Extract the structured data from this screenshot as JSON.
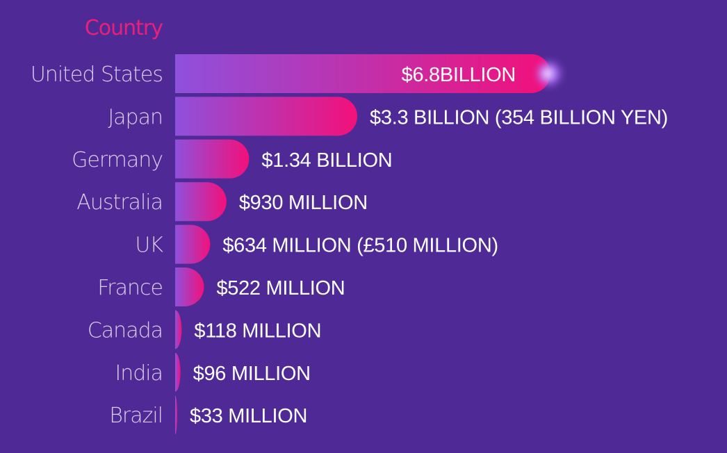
{
  "chart_data": {
    "type": "bar",
    "orientation": "horizontal",
    "category_header": "Country",
    "categories": [
      "United States",
      "Japan",
      "Germany",
      "Australia",
      "UK",
      "France",
      "Canada",
      "India",
      "Brazil"
    ],
    "values": [
      6.8,
      3.3,
      1.34,
      0.93,
      0.634,
      0.522,
      0.118,
      0.096,
      0.033
    ],
    "value_unit": "USD billion",
    "data_labels": [
      "$6.8BILLION",
      "$3.3 BILLION (354 BILLION YEN)",
      "$1.34 BILLION",
      "$930 MILLION",
      "$634 MILLION (£510 MILLION)",
      "$522 MILLION",
      "$118 MILLION",
      "$96 MILLION",
      "$33 MILLION"
    ],
    "xlim": [
      0,
      6.8
    ],
    "grid": false,
    "legend": "none",
    "colors": {
      "background": "#4f2a96",
      "bar_start": "#8f50dc",
      "bar_end": "#f3107a",
      "header": "#e8207a",
      "category_text": "#d9cdf0",
      "label_text": "#ffffff",
      "glow": "#b06cff"
    }
  }
}
